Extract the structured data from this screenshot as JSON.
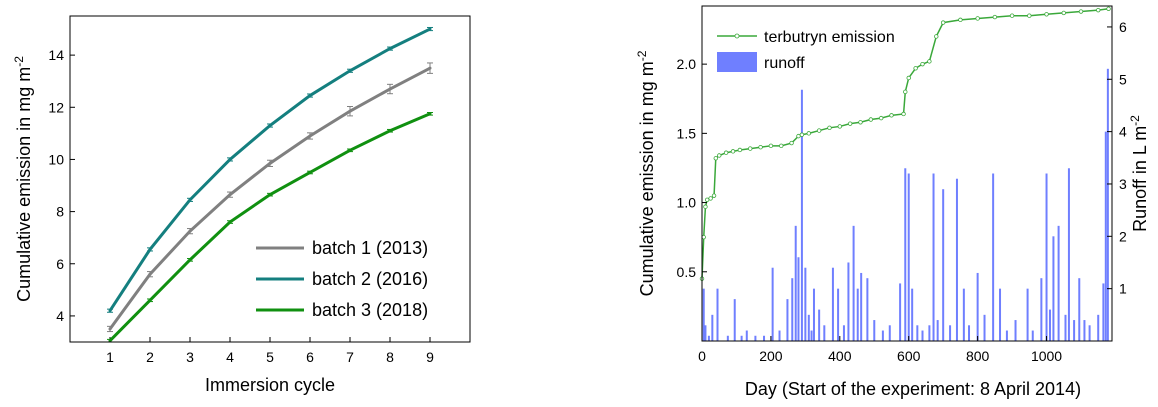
{
  "chart_data": [
    {
      "type": "line",
      "xlabel": "Immersion cycle",
      "ylabel_main": "Cumulative emission in mg m",
      "ylabel_exp": "-2",
      "xlim": [
        0,
        10
      ],
      "ylim": [
        3,
        15.5
      ],
      "xticks": [
        "1",
        "2",
        "3",
        "4",
        "5",
        "6",
        "7",
        "8",
        "9"
      ],
      "yticks": [
        "4",
        "6",
        "8",
        "10",
        "12",
        "14"
      ],
      "grid": false,
      "legend_position": "bottom-right",
      "x": [
        1,
        2,
        3,
        4,
        5,
        6,
        7,
        8,
        9
      ],
      "series": [
        {
          "name": "batch 1 (2013)",
          "color": "#808080",
          "values": [
            3.5,
            5.6,
            7.25,
            8.65,
            9.85,
            10.9,
            11.85,
            12.7,
            13.5
          ],
          "error": [
            0.1,
            0.1,
            0.1,
            0.1,
            0.12,
            0.12,
            0.18,
            0.18,
            0.2
          ]
        },
        {
          "name": "batch 2 (2016)",
          "color": "#147f7f",
          "values": [
            4.2,
            6.55,
            8.45,
            10.0,
            11.3,
            12.45,
            13.4,
            14.25,
            15.0
          ],
          "error": [
            0.06,
            0.06,
            0.06,
            0.06,
            0.06,
            0.06,
            0.06,
            0.06,
            0.06
          ]
        },
        {
          "name": "batch 3 (2018)",
          "color": "#109010",
          "values": [
            3.05,
            4.6,
            6.15,
            7.6,
            8.65,
            9.5,
            10.35,
            11.1,
            11.75
          ],
          "error": [
            0.05,
            0.05,
            0.05,
            0.05,
            0.05,
            0.05,
            0.05,
            0.05,
            0.05
          ]
        }
      ]
    },
    {
      "type": "line+bar",
      "xlabel": "Day (Start of the experiment: 8 April 2014)",
      "ylabel_left_main": "Cumulative emission in mg m",
      "ylabel_left_exp": "-2",
      "ylabel_right_main": "Runoff in L m",
      "ylabel_right_exp": "-2",
      "xlim": [
        0,
        1190
      ],
      "ylim_left": [
        0,
        2.42
      ],
      "ylim_right": [
        0,
        6.4
      ],
      "xticks": [
        "0",
        "200",
        "400",
        "600",
        "800",
        "1000"
      ],
      "yticks_left": [
        "0.5",
        "1.0",
        "1.5",
        "2.0"
      ],
      "yticks_right": [
        "1",
        "2",
        "3",
        "4",
        "5",
        "6"
      ],
      "grid": false,
      "legend_position": "top-left",
      "emission": {
        "name": "terbutryn emission",
        "color": "#3aa83a",
        "x": [
          0,
          5,
          10,
          15,
          25,
          35,
          40,
          50,
          70,
          90,
          110,
          140,
          170,
          200,
          230,
          260,
          280,
          290,
          310,
          340,
          370,
          400,
          430,
          460,
          490,
          520,
          550,
          585,
          590,
          600,
          620,
          640,
          660,
          680,
          700,
          750,
          800,
          850,
          900,
          950,
          1000,
          1050,
          1100,
          1150,
          1180
        ],
        "y": [
          0.45,
          0.75,
          0.97,
          1.02,
          1.03,
          1.05,
          1.32,
          1.34,
          1.36,
          1.37,
          1.38,
          1.39,
          1.4,
          1.41,
          1.41,
          1.43,
          1.48,
          1.49,
          1.5,
          1.52,
          1.54,
          1.55,
          1.57,
          1.58,
          1.6,
          1.61,
          1.63,
          1.64,
          1.8,
          1.9,
          1.97,
          2.0,
          2.02,
          2.2,
          2.3,
          2.32,
          2.33,
          2.34,
          2.35,
          2.35,
          2.36,
          2.37,
          2.38,
          2.39,
          2.4
        ]
      },
      "runoff": {
        "name": "runoff",
        "color": "#6f7fff",
        "days": [
          5,
          10,
          20,
          30,
          45,
          75,
          95,
          115,
          130,
          155,
          180,
          205,
          225,
          248,
          262,
          272,
          280,
          290,
          300,
          310,
          318,
          325,
          340,
          355,
          380,
          395,
          412,
          425,
          440,
          452,
          462,
          480,
          500,
          525,
          545,
          575,
          590,
          600,
          610,
          625,
          640,
          660,
          672,
          684,
          700,
          720,
          740,
          760,
          775,
          800,
          820,
          845,
          865,
          885,
          910,
          945,
          960,
          985,
          1000,
          1010,
          1020,
          1035,
          1055,
          1065,
          1080,
          1095,
          1110,
          1125,
          1150,
          1165,
          1172,
          1178
        ],
        "values": [
          1.0,
          0.3,
          0.1,
          0.5,
          1.0,
          0.1,
          0.8,
          0.1,
          0.2,
          0.1,
          0.1,
          1.4,
          0.2,
          0.8,
          1.2,
          2.2,
          1.6,
          4.8,
          1.4,
          0.5,
          0.2,
          1.0,
          0.6,
          0.3,
          1.4,
          1.0,
          0.3,
          1.5,
          2.2,
          1.0,
          1.3,
          1.2,
          0.4,
          0.2,
          0.3,
          1.1,
          3.3,
          3.2,
          1.0,
          0.3,
          0.2,
          0.3,
          3.2,
          0.4,
          2.9,
          0.3,
          3.1,
          1.0,
          0.3,
          1.3,
          0.5,
          3.2,
          1.0,
          0.2,
          0.4,
          1.0,
          0.2,
          1.2,
          3.2,
          0.6,
          2.0,
          2.2,
          0.5,
          3.3,
          0.4,
          1.2,
          0.4,
          0.3,
          0.5,
          1.1,
          4.0,
          5.2
        ]
      }
    }
  ]
}
